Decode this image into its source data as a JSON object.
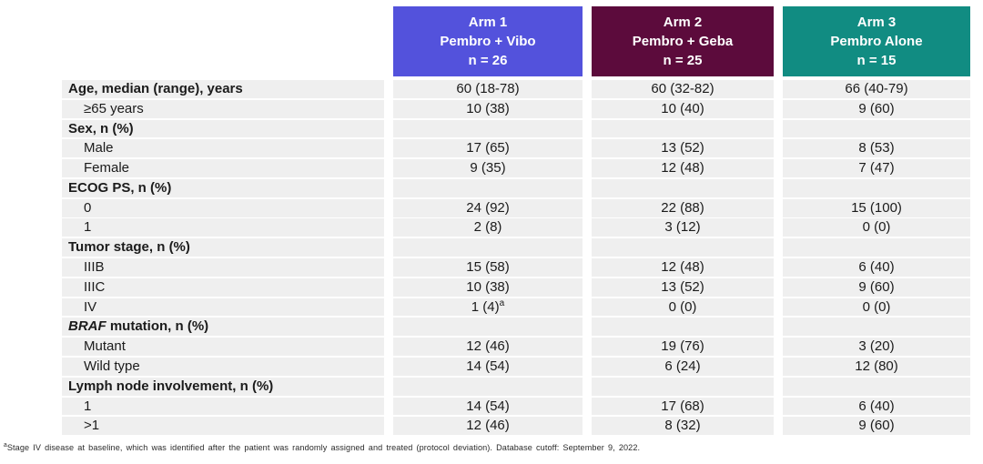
{
  "header": {
    "columns": [
      {
        "arm": "Arm 1",
        "treatment": "Pembro + Vibo",
        "n": "n = 26",
        "color": "#5352DC"
      },
      {
        "arm": "Arm 2",
        "treatment": "Pembro + Geba",
        "n": "n = 25",
        "color": "#5C0B3C"
      },
      {
        "arm": "Arm 3",
        "treatment": "Pembro Alone",
        "n": "n = 15",
        "color": "#118C82"
      }
    ]
  },
  "table": {
    "rows": [
      {
        "label": "Age, median (range), years",
        "bold": true,
        "indent": false,
        "values": [
          "60 (18-78)",
          "60 (32-82)",
          "66 (40-79)"
        ]
      },
      {
        "label": "≥65 years",
        "bold": false,
        "indent": true,
        "values": [
          "10 (38)",
          "10 (40)",
          "9 (60)"
        ]
      },
      {
        "label": "Sex, n (%)",
        "bold": true,
        "indent": false,
        "values": [
          "",
          "",
          ""
        ]
      },
      {
        "label": "Male",
        "bold": false,
        "indent": true,
        "values": [
          "17 (65)",
          "13 (52)",
          "8 (53)"
        ]
      },
      {
        "label": "Female",
        "bold": false,
        "indent": true,
        "values": [
          "9 (35)",
          "12 (48)",
          "7 (47)"
        ]
      },
      {
        "label": "ECOG PS, n (%)",
        "bold": true,
        "indent": false,
        "values": [
          "",
          "",
          ""
        ]
      },
      {
        "label": "0",
        "bold": false,
        "indent": true,
        "values": [
          "24 (92)",
          "22 (88)",
          "15 (100)"
        ]
      },
      {
        "label": "1",
        "bold": false,
        "indent": true,
        "values": [
          "2 (8)",
          "3 (12)",
          "0 (0)"
        ]
      },
      {
        "label": "Tumor stage, n (%)",
        "bold": true,
        "indent": false,
        "values": [
          "",
          "",
          ""
        ]
      },
      {
        "label": "IIIB",
        "bold": false,
        "indent": true,
        "values": [
          "15 (58)",
          "12 (48)",
          "6 (40)"
        ]
      },
      {
        "label": "IIIC",
        "bold": false,
        "indent": true,
        "values": [
          "10 (38)",
          "13 (52)",
          "9 (60)"
        ]
      },
      {
        "label": "IV",
        "bold": false,
        "indent": true,
        "values": [
          "1 (4)",
          "0 (0)",
          "0 (0)"
        ],
        "sup": [
          "a",
          "",
          ""
        ]
      },
      {
        "label": "BRAF mutation, n (%)",
        "bold": true,
        "indent": false,
        "italic_prefix": "BRAF",
        "values": [
          "",
          "",
          ""
        ]
      },
      {
        "label": "Mutant",
        "bold": false,
        "indent": true,
        "values": [
          "12 (46)",
          "19 (76)",
          "3 (20)"
        ]
      },
      {
        "label": "Wild type",
        "bold": false,
        "indent": true,
        "values": [
          "14 (54)",
          "6 (24)",
          "12 (80)"
        ]
      },
      {
        "label": "Lymph node involvement, n (%)",
        "bold": true,
        "indent": false,
        "values": [
          "",
          "",
          ""
        ]
      },
      {
        "label": "1",
        "bold": false,
        "indent": true,
        "values": [
          "14 (54)",
          "17 (68)",
          "6 (40)"
        ]
      },
      {
        "label": ">1",
        "bold": false,
        "indent": true,
        "values": [
          "12 (46)",
          "8 (32)",
          "9 (60)"
        ]
      }
    ]
  },
  "footnote": {
    "marker": "a",
    "text": "Stage IV disease at baseline, which was identified after the patient was randomly assigned and treated (protocol deviation). Database cutoff: September 9, 2022."
  }
}
